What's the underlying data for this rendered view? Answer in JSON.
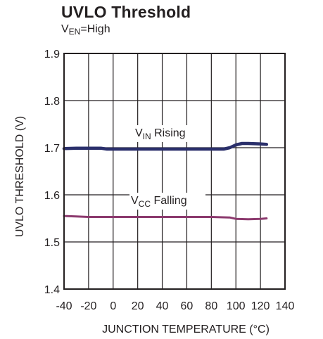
{
  "header": {
    "title": "UVLO Threshold",
    "subtitle_main": "V",
    "subtitle_sub": "EN",
    "subtitle_rest": "=High"
  },
  "chart_data": {
    "type": "line",
    "title": "UVLO Threshold",
    "subtitle": "VEN=High",
    "xlabel": "JUNCTION TEMPERATURE (°C)",
    "ylabel": "UVLO THRESHOLD (V)",
    "xlim": [
      -40,
      140
    ],
    "ylim": [
      1.4,
      1.9
    ],
    "xticks": [
      -40,
      -20,
      0,
      20,
      40,
      60,
      80,
      100,
      120,
      140
    ],
    "yticks": [
      1.4,
      1.5,
      1.6,
      1.7,
      1.8,
      1.9
    ],
    "xtick_labels": [
      "-40",
      "-20",
      "0",
      "20",
      "40",
      "60",
      "80",
      "100",
      "120",
      "140"
    ],
    "ytick_labels": [
      "1.4",
      "1.5",
      "1.6",
      "1.7",
      "1.8",
      "1.9"
    ],
    "grid": true,
    "legend": "none",
    "series": [
      {
        "name": "VIN Rising",
        "label_main": "V",
        "label_sub": "IN",
        "label_rest": " Rising",
        "color": "#2a2f6b",
        "x": [
          -40,
          -30,
          -20,
          -10,
          -5,
          0,
          20,
          40,
          60,
          80,
          90,
          95,
          100,
          105,
          110,
          120,
          125
        ],
        "y": [
          1.698,
          1.699,
          1.699,
          1.699,
          1.697,
          1.697,
          1.697,
          1.697,
          1.697,
          1.697,
          1.697,
          1.7,
          1.706,
          1.709,
          1.709,
          1.708,
          1.707
        ]
      },
      {
        "name": "VCC Falling",
        "label_main": "V",
        "label_sub": "CC",
        "label_rest": " Falling",
        "color": "#8c3a6e",
        "x": [
          -40,
          -30,
          -20,
          0,
          20,
          40,
          60,
          80,
          95,
          100,
          110,
          120,
          125
        ],
        "y": [
          1.555,
          1.554,
          1.553,
          1.553,
          1.553,
          1.553,
          1.553,
          1.553,
          1.552,
          1.549,
          1.548,
          1.549,
          1.55
        ]
      }
    ]
  }
}
